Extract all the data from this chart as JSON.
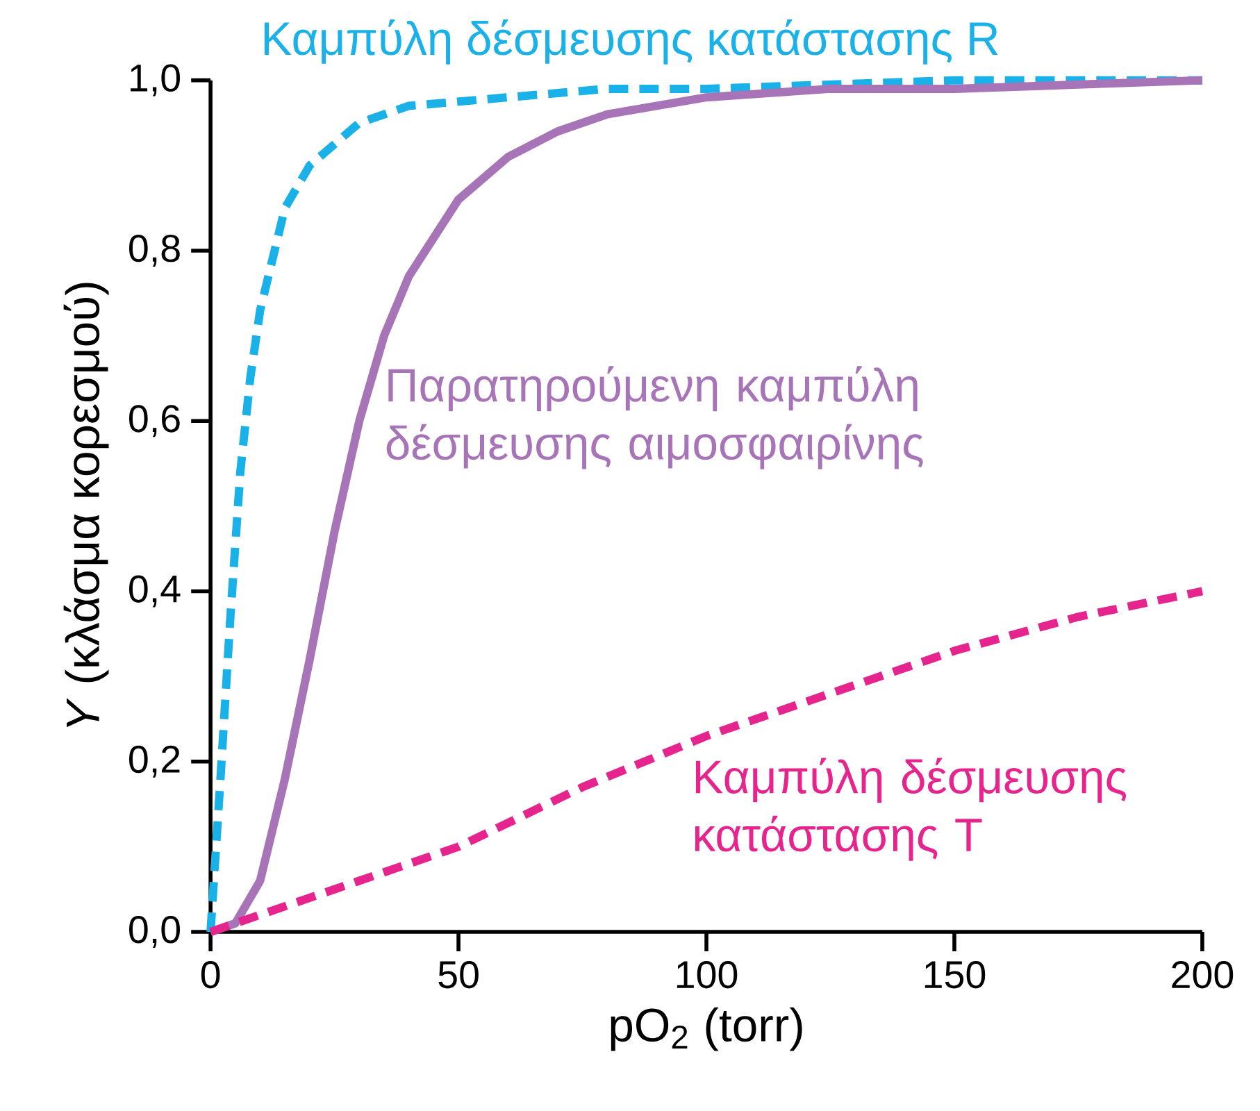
{
  "chart_data": {
    "type": "line",
    "xlabel": "pO$_{2}$ (torr)",
    "ylabel": "*Y* (κλάσμα κορεσμού)",
    "xlim": [
      0,
      200
    ],
    "ylim": [
      0,
      1.0
    ],
    "xticks": [
      0,
      50,
      100,
      150,
      200
    ],
    "yticks": [
      {
        "value": 0,
        "label": "0,0"
      },
      {
        "value": 0.2,
        "label": "0,2"
      },
      {
        "value": 0.4,
        "label": "0,4"
      },
      {
        "value": 0.6,
        "label": "0,6"
      },
      {
        "value": 0.8,
        "label": "0,8"
      },
      {
        "value": 1.0,
        "label": "1,0"
      }
    ],
    "series": [
      {
        "name": "Καμπύλη δέσμευσης κατάστασης R",
        "color": "#1ab0e8",
        "line_style": "dashed",
        "x": [
          0,
          2,
          4,
          6,
          8,
          10,
          15,
          20,
          30,
          40,
          60,
          80,
          100,
          150,
          200
        ],
        "values": [
          0,
          0.18,
          0.37,
          0.54,
          0.65,
          0.73,
          0.85,
          0.9,
          0.95,
          0.97,
          0.98,
          0.99,
          0.99,
          1.0,
          1.0
        ]
      },
      {
        "name": "Παρατηρούμενη καμπύλη δέσμευσης αιμοσφαιρίνης",
        "color": "#a874b8",
        "line_style": "solid",
        "x": [
          0,
          5,
          10,
          15,
          20,
          25,
          30,
          35,
          40,
          50,
          60,
          70,
          80,
          100,
          125,
          150,
          200
        ],
        "values": [
          0,
          0.01,
          0.06,
          0.18,
          0.32,
          0.47,
          0.6,
          0.7,
          0.77,
          0.86,
          0.91,
          0.94,
          0.96,
          0.98,
          0.99,
          0.99,
          1.0
        ]
      },
      {
        "name": "Καμπύλη δέσμευσης κατάστασης T",
        "color": "#e6248e",
        "line_style": "dashed",
        "x": [
          0,
          10,
          25,
          50,
          75,
          100,
          125,
          150,
          175,
          200
        ],
        "values": [
          0,
          0.02,
          0.05,
          0.1,
          0.17,
          0.23,
          0.28,
          0.33,
          0.37,
          0.4
        ]
      }
    ]
  }
}
